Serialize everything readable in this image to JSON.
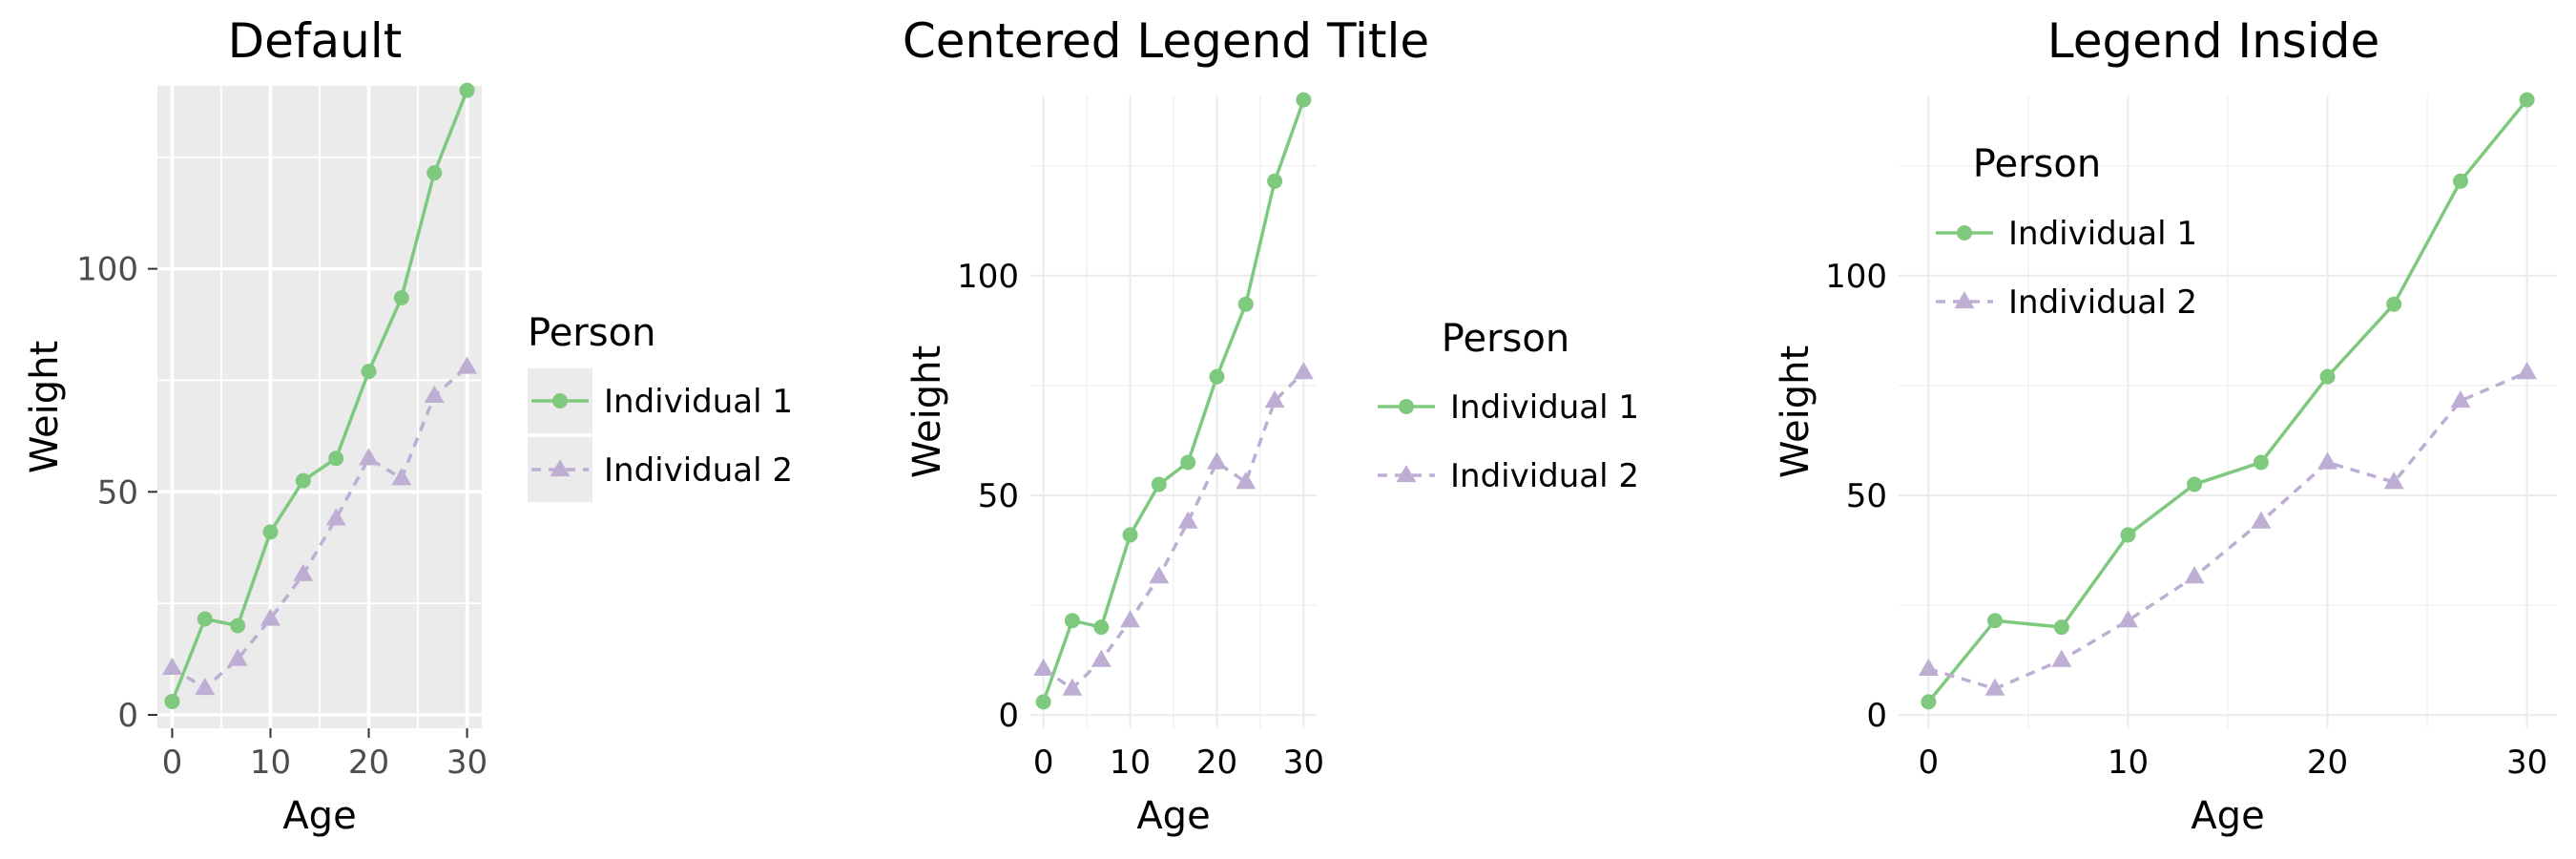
{
  "colors": {
    "individual_1": "#7FC97F",
    "individual_2": "#BEAED4",
    "panel_bg_default": "#EBEBEB",
    "grid_default": "#FFFFFF",
    "grid_minimal": "#EBEBEB",
    "text": "#000000",
    "tick_text_default": "#4D4D4D"
  },
  "chart_data": [
    {
      "type": "line",
      "title": "Default",
      "xlabel": "Age",
      "ylabel": "Weight",
      "xlim": [
        -1.5,
        31.5
      ],
      "ylim": [
        -3,
        141
      ],
      "x_ticks": [
        "0",
        "10",
        "20",
        "30"
      ],
      "y_ticks": [
        "0",
        "50",
        "100"
      ],
      "theme": "gray",
      "grid": true,
      "legend": {
        "title": "Person",
        "title_align": "left",
        "placement": "right",
        "entries": [
          "Individual 1",
          "Individual 2"
        ]
      },
      "series": [
        {
          "name": "Individual 1",
          "marker": "circle",
          "line": "solid",
          "x": [
            0,
            3.33,
            6.67,
            10,
            13.33,
            16.67,
            20,
            23.33,
            26.67,
            30
          ],
          "y": [
            3,
            21.5,
            20,
            41,
            52.5,
            57.5,
            77,
            93.5,
            121.5,
            140
          ]
        },
        {
          "name": "Individual 2",
          "marker": "triangle",
          "line": "dashed",
          "x": [
            0,
            3.33,
            6.67,
            10,
            13.33,
            16.67,
            20,
            23.33,
            26.67,
            30
          ],
          "y": [
            10.5,
            6,
            12.5,
            21.5,
            31.5,
            44,
            57.5,
            53,
            71.5,
            78
          ]
        }
      ]
    },
    {
      "type": "line",
      "title": "Centered Legend Title",
      "xlabel": "Age",
      "ylabel": "Weight",
      "xlim": [
        -1.5,
        31.5
      ],
      "ylim": [
        -3,
        141
      ],
      "x_ticks": [
        "0",
        "10",
        "20",
        "30"
      ],
      "y_ticks": [
        "0",
        "50",
        "100"
      ],
      "theme": "minimal",
      "grid": true,
      "legend": {
        "title": "Person",
        "title_align": "center",
        "placement": "right",
        "entries": [
          "Individual 1",
          "Individual 2"
        ]
      },
      "series": [
        {
          "name": "Individual 1",
          "marker": "circle",
          "line": "solid",
          "x": [
            0,
            3.33,
            6.67,
            10,
            13.33,
            16.67,
            20,
            23.33,
            26.67,
            30
          ],
          "y": [
            3,
            21.5,
            20,
            41,
            52.5,
            57.5,
            77,
            93.5,
            121.5,
            140
          ]
        },
        {
          "name": "Individual 2",
          "marker": "triangle",
          "line": "dashed",
          "x": [
            0,
            3.33,
            6.67,
            10,
            13.33,
            16.67,
            20,
            23.33,
            26.67,
            30
          ],
          "y": [
            10.5,
            6,
            12.5,
            21.5,
            31.5,
            44,
            57.5,
            53,
            71.5,
            78
          ]
        }
      ]
    },
    {
      "type": "line",
      "title": "Legend Inside",
      "xlabel": "Age",
      "ylabel": "Weight",
      "xlim": [
        -1.5,
        31.5
      ],
      "ylim": [
        -3,
        141
      ],
      "x_ticks": [
        "0",
        "10",
        "20",
        "30"
      ],
      "y_ticks": [
        "0",
        "50",
        "100"
      ],
      "theme": "minimal",
      "grid": true,
      "legend": {
        "title": "Person",
        "title_align": "center",
        "placement": "top-left inside",
        "entries": [
          "Individual 1",
          "Individual 2"
        ]
      },
      "series": [
        {
          "name": "Individual 1",
          "marker": "circle",
          "line": "solid",
          "x": [
            0,
            3.33,
            6.67,
            10,
            13.33,
            16.67,
            20,
            23.33,
            26.67,
            30
          ],
          "y": [
            3,
            21.5,
            20,
            41,
            52.5,
            57.5,
            77,
            93.5,
            121.5,
            140
          ]
        },
        {
          "name": "Individual 2",
          "marker": "triangle",
          "line": "dashed",
          "x": [
            0,
            3.33,
            6.67,
            10,
            13.33,
            16.67,
            20,
            23.33,
            26.67,
            30
          ],
          "y": [
            10.5,
            6,
            12.5,
            21.5,
            31.5,
            44,
            57.5,
            53,
            71.5,
            78
          ]
        }
      ]
    }
  ]
}
